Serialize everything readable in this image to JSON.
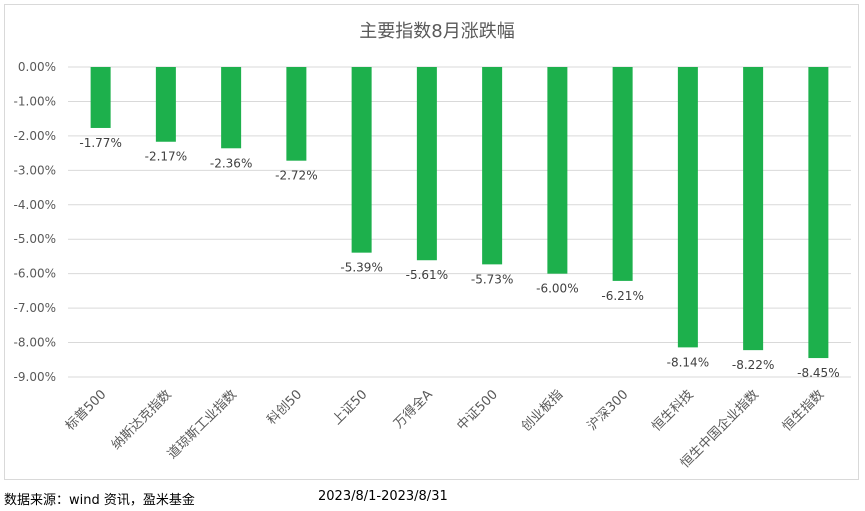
{
  "chart_data": {
    "type": "bar",
    "title": "主要指数8月涨跌幅",
    "categories": [
      "标普500",
      "纳斯达克指数",
      "道琼斯工业指数",
      "科创50",
      "上证50",
      "万得全A",
      "中证500",
      "创业板指",
      "沪深300",
      "恒生科技",
      "恒生中国企业指数",
      "恒生指数"
    ],
    "values": [
      -1.77,
      -2.17,
      -2.36,
      -2.72,
      -5.39,
      -5.61,
      -5.73,
      -6.0,
      -6.21,
      -8.14,
      -8.22,
      -8.45
    ],
    "data_labels": [
      "-1.77%",
      "-2.17%",
      "-2.36%",
      "-2.72%",
      "-5.39%",
      "-5.61%",
      "-5.73%",
      "-6.00%",
      "-6.21%",
      "-8.14%",
      "-8.22%",
      "-8.45%"
    ],
    "y_ticks": [
      0,
      -1,
      -2,
      -3,
      -4,
      -5,
      -6,
      -7,
      -8,
      -9
    ],
    "y_tick_labels": [
      "0.00%",
      "-1.00%",
      "-2.00%",
      "-3.00%",
      "-4.00%",
      "-5.00%",
      "-6.00%",
      "-7.00%",
      "-8.00%",
      "-9.00%"
    ],
    "ylim": [
      -9,
      0
    ],
    "xlabel": "",
    "ylabel": "",
    "grid": true,
    "legend": "none",
    "bar_color": "#1db04c"
  },
  "footer": {
    "source": "数据来源：wind 资讯，盈米基金",
    "period": "2023/8/1-2023/8/31"
  }
}
